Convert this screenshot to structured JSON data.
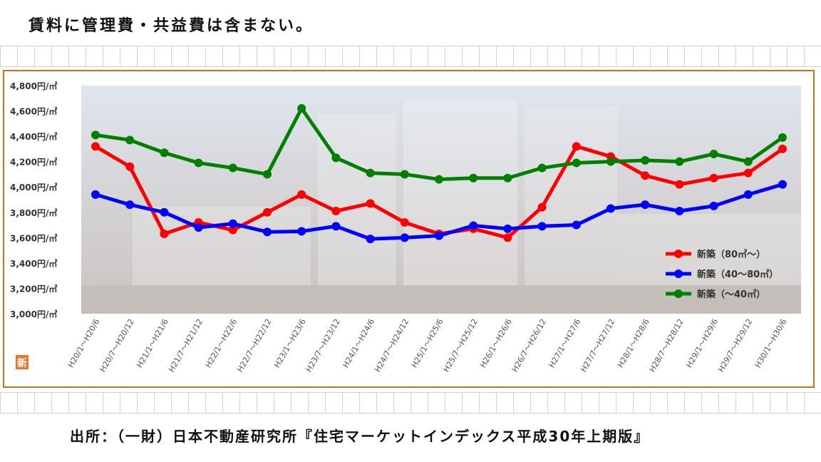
{
  "note": "賃料に管理費・共益費は含まない。",
  "source": "出所：（一財）日本不動産研究所『住宅マーケットインデックス平成30年上期版』",
  "badge": "新",
  "colors": {
    "frame": "#c8701e",
    "new80plus": "#ff0000",
    "new40to80": "#0000ff",
    "newUnder40": "#008000",
    "background_photo": "#cfcdd0"
  },
  "chart_data": {
    "type": "line",
    "title": "",
    "xlabel": "",
    "ylabel": "",
    "ylim": [
      3000,
      4800
    ],
    "yticks": [
      3000,
      3200,
      3400,
      3600,
      3800,
      4000,
      4200,
      4400,
      4600,
      4800
    ],
    "ytick_labels": [
      "3,000円/㎡",
      "3,200円/㎡",
      "3,400円/㎡",
      "3,600円/㎡",
      "3,800円/㎡",
      "4,000円/㎡",
      "4,200円/㎡",
      "4,400円/㎡",
      "4,600円/㎡",
      "4,800円/㎡"
    ],
    "categories": [
      "H20/1～H20/6",
      "H20/7～H20/12",
      "H21/1～H21/6",
      "H21/7～H21/12",
      "H22/1～H22/6",
      "H22/7～H22/12",
      "H23/1～H23/6",
      "H23/7～H23/12",
      "H24/1～H24/6",
      "H24/7～H24/12",
      "H25/1～H25/6",
      "H25/7～H25/12",
      "H26/1～H26/6",
      "H26/7～H26/12",
      "H27/1～H27/6",
      "H27/7～H27/12",
      "H28/1～H28/6",
      "H28/7～H28/12",
      "H29/1～H29/6",
      "H29/7～H29/12",
      "H30/1～H30/6"
    ],
    "grid": false,
    "legend_position": "bottom-right",
    "series": [
      {
        "name": "新築（80㎡～）",
        "color": "#ff0000",
        "values": [
          4320,
          4160,
          3630,
          3720,
          3660,
          3800,
          3940,
          3810,
          3870,
          3720,
          3630,
          3670,
          3600,
          3840,
          4320,
          4240,
          4090,
          4020,
          4070,
          4110,
          4300
        ]
      },
      {
        "name": "新築（40～80㎡）",
        "color": "#0000ff",
        "values": [
          3940,
          3860,
          3800,
          3680,
          3710,
          3645,
          3650,
          3690,
          3590,
          3600,
          3615,
          3695,
          3670,
          3690,
          3700,
          3830,
          3860,
          3810,
          3850,
          3940,
          4020
        ]
      },
      {
        "name": "新築（～40㎡）",
        "color": "#008000",
        "values": [
          4410,
          4370,
          4270,
          4190,
          4150,
          4100,
          4620,
          4230,
          4110,
          4100,
          4060,
          4070,
          4070,
          4150,
          4190,
          4200,
          4210,
          4200,
          4260,
          4200,
          4390
        ]
      }
    ]
  }
}
